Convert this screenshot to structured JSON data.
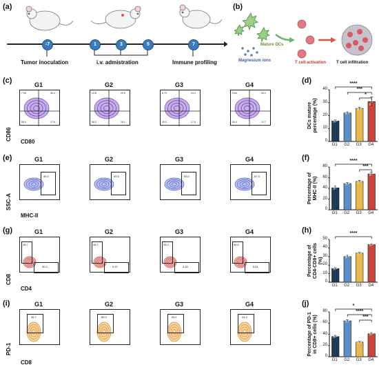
{
  "panel_letters": [
    "(a)",
    "(b)",
    "(c)",
    "(d)",
    "(e)",
    "(f)",
    "(g)",
    "(h)",
    "(i)",
    "(j)"
  ],
  "timeline": {
    "nodes": [
      "-7",
      "1",
      "3",
      "5",
      "7"
    ],
    "labels": {
      "tumor": "Tumor inoculation",
      "iv": "i.v. admistration",
      "immune": "Immune profiling"
    }
  },
  "schematic_b": {
    "mature_dcs": "Mature DCs",
    "magnesium": "Magnesium ions",
    "t_activation": "T cell activation",
    "t_infiltration": "T cell infiltration"
  },
  "groups": [
    "G1",
    "G2",
    "G3",
    "G4"
  ],
  "colors": {
    "G1": "#1f3b57",
    "G2": "#5b8fc9",
    "G3": "#e8b84a",
    "G4": "#c8453a"
  },
  "flow_c": {
    "xlabel": "CD80",
    "ylabel": "CD86",
    "q2": [
      "36.4",
      "20.5",
      "24.4",
      "33.2"
    ],
    "q1": [
      "7.05",
      "13.8",
      "8.75",
      "5.84"
    ],
    "q4": [
      "56.5",
      "56.2",
      "49.2",
      "60.4"
    ],
    "q3": [
      "17.6",
      "16.1",
      "17.6",
      "12.7"
    ]
  },
  "flow_e": {
    "xlabel": "MHC-II",
    "ylabel": "SSC-A",
    "gate": [
      "40.2",
      "49.5",
      "53.0",
      "67.3"
    ]
  },
  "flow_g": {
    "xlabel": "CD4",
    "ylabel": "CD8",
    "cd8": [
      "16.7",
      "28.7",
      "33.2",
      "44.0"
    ],
    "cd4": [
      "30.2",
      "5.37",
      "4.43",
      "5.61"
    ]
  },
  "flow_i": {
    "xlabel": "CD8",
    "ylabel": "PD-1",
    "gate": [
      "36.7",
      "65.2",
      "26.1",
      "41.2"
    ]
  },
  "chart_data": [
    {
      "type": "bar",
      "panel": "d",
      "categories": [
        "G1",
        "G2",
        "G3",
        "G4"
      ],
      "values": [
        15.8,
        22.0,
        25.5,
        30.8
      ],
      "errors": [
        0.8,
        0.8,
        1.0,
        3.5
      ],
      "ylabel": "DCs mature percentage (%)",
      "ylim": [
        0,
        40
      ],
      "yticks": [
        0,
        10,
        20,
        30,
        40
      ],
      "significance": [
        {
          "label": "****",
          "from": "G1",
          "to": "G4"
        },
        {
          "label": "***",
          "from": "G2",
          "to": "G4"
        },
        {
          "label": "*",
          "from": "G3",
          "to": "G4"
        }
      ]
    },
    {
      "type": "bar",
      "panel": "f",
      "categories": [
        "G1",
        "G2",
        "G3",
        "G4"
      ],
      "values": [
        41,
        49,
        53,
        67
      ],
      "errors": [
        3,
        2,
        2,
        3
      ],
      "ylabel": "Percentage of MHC-II (%)",
      "ylim": [
        0,
        80
      ],
      "yticks": [
        0,
        20,
        40,
        60,
        80
      ],
      "significance": [
        {
          "label": "****",
          "from": "G1",
          "to": "G4"
        },
        {
          "label": "***",
          "from": "G3",
          "to": "G4"
        }
      ]
    },
    {
      "type": "bar",
      "panel": "h",
      "categories": [
        "G1",
        "G2",
        "G3",
        "G4"
      ],
      "values": [
        16,
        30,
        34,
        44
      ],
      "errors": [
        1.2,
        1.5,
        1.0,
        1.0
      ],
      "ylabel": "Percentage of CD4-CD8+ cells (%)",
      "ylim": [
        0,
        50
      ],
      "yticks": [
        0,
        10,
        20,
        30,
        40,
        50
      ],
      "significance": [
        {
          "label": "****",
          "from": "G1",
          "to": "G4"
        }
      ]
    },
    {
      "type": "bar",
      "panel": "j",
      "categories": [
        "G1",
        "G2",
        "G3",
        "G4"
      ],
      "values": [
        36,
        64,
        26,
        41
      ],
      "errors": [
        2,
        2,
        1.5,
        2
      ],
      "ylabel": "Percentage of PD-1 in CD8+ cells (%)",
      "ylim": [
        0,
        80
      ],
      "yticks": [
        0,
        20,
        40,
        60,
        80
      ],
      "significance": [
        {
          "label": "*",
          "from": "G1",
          "to": "G4"
        },
        {
          "label": "****",
          "from": "G2",
          "to": "G4"
        },
        {
          "label": "***",
          "from": "G3",
          "to": "G4"
        }
      ]
    }
  ]
}
